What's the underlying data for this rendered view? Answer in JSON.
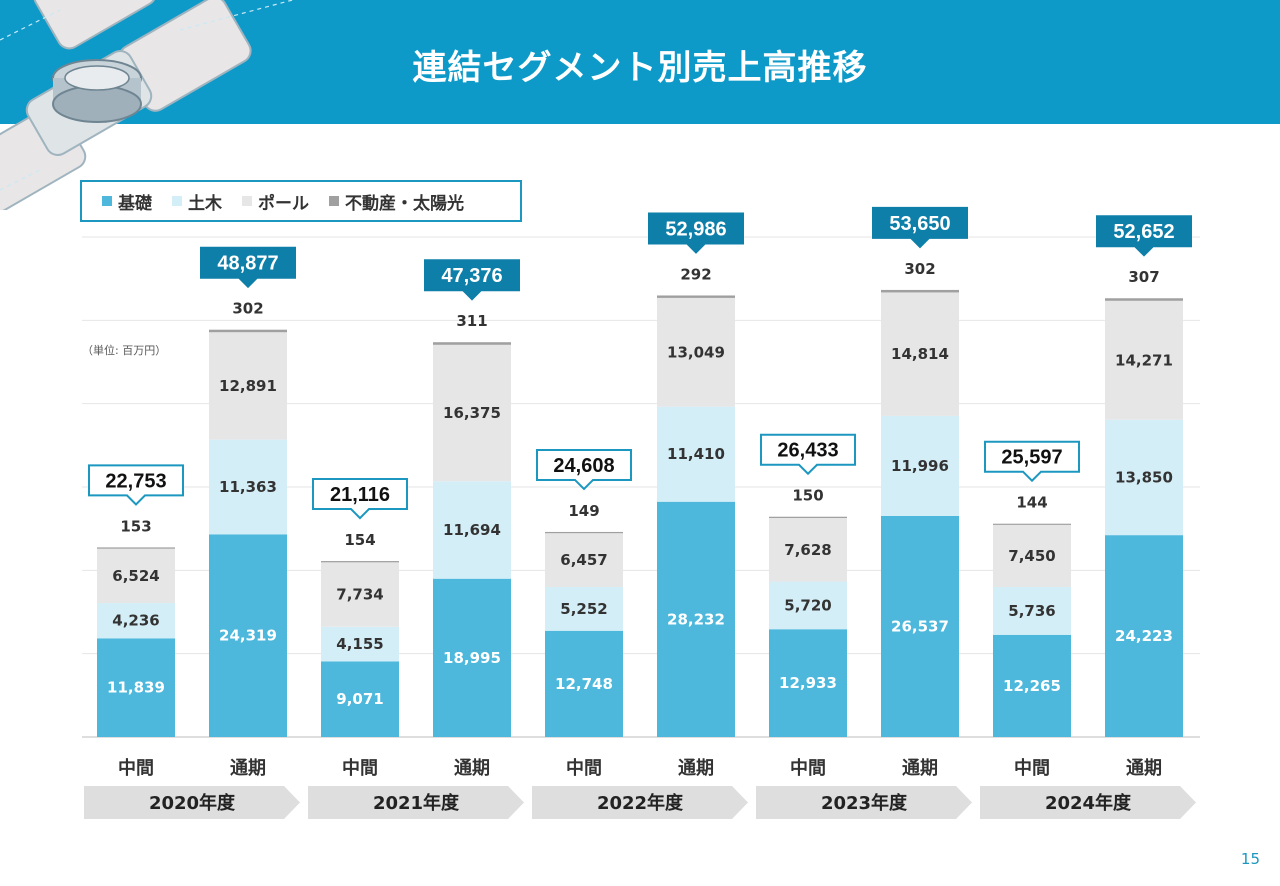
{
  "title": "連結セグメント別売上高推移",
  "unit_note": "（単位: 百万円）",
  "page_number": "15",
  "legend": [
    {
      "label": "基礎",
      "color": "#4db8dc"
    },
    {
      "label": "土木",
      "color": "#d4eef7"
    },
    {
      "label": "ポール",
      "color": "#e6e6e6"
    },
    {
      "label": "不動産・太陽光",
      "color": "#a0a0a0"
    }
  ],
  "chart_data": {
    "type": "bar",
    "stacked": true,
    "categories": [
      "中間",
      "通期",
      "中間",
      "通期",
      "中間",
      "通期",
      "中間",
      "通期",
      "中間",
      "通期"
    ],
    "groups": [
      "2020年度",
      "2021年度",
      "2022年度",
      "2023年度",
      "2024年度"
    ],
    "series": [
      {
        "name": "基礎",
        "values": [
          11839,
          24319,
          9071,
          18995,
          12748,
          28232,
          12933,
          26537,
          12265,
          24223
        ]
      },
      {
        "name": "土木",
        "values": [
          4236,
          11363,
          4155,
          11694,
          5252,
          11410,
          5720,
          11996,
          5736,
          13850
        ]
      },
      {
        "name": "ポール",
        "values": [
          6524,
          12891,
          7734,
          16375,
          6457,
          13049,
          7628,
          14814,
          7450,
          14271
        ]
      },
      {
        "name": "不動産・太陽光",
        "values": [
          153,
          302,
          154,
          311,
          149,
          292,
          150,
          302,
          144,
          307
        ]
      }
    ],
    "totals": [
      "22,753",
      "48,877",
      "21,116",
      "47,376",
      "24,608",
      "52,986",
      "26,433",
      "53,650",
      "25,597",
      "52,652"
    ],
    "ylim": [
      0,
      60000
    ],
    "grid": true,
    "legend_position": "top-left"
  }
}
